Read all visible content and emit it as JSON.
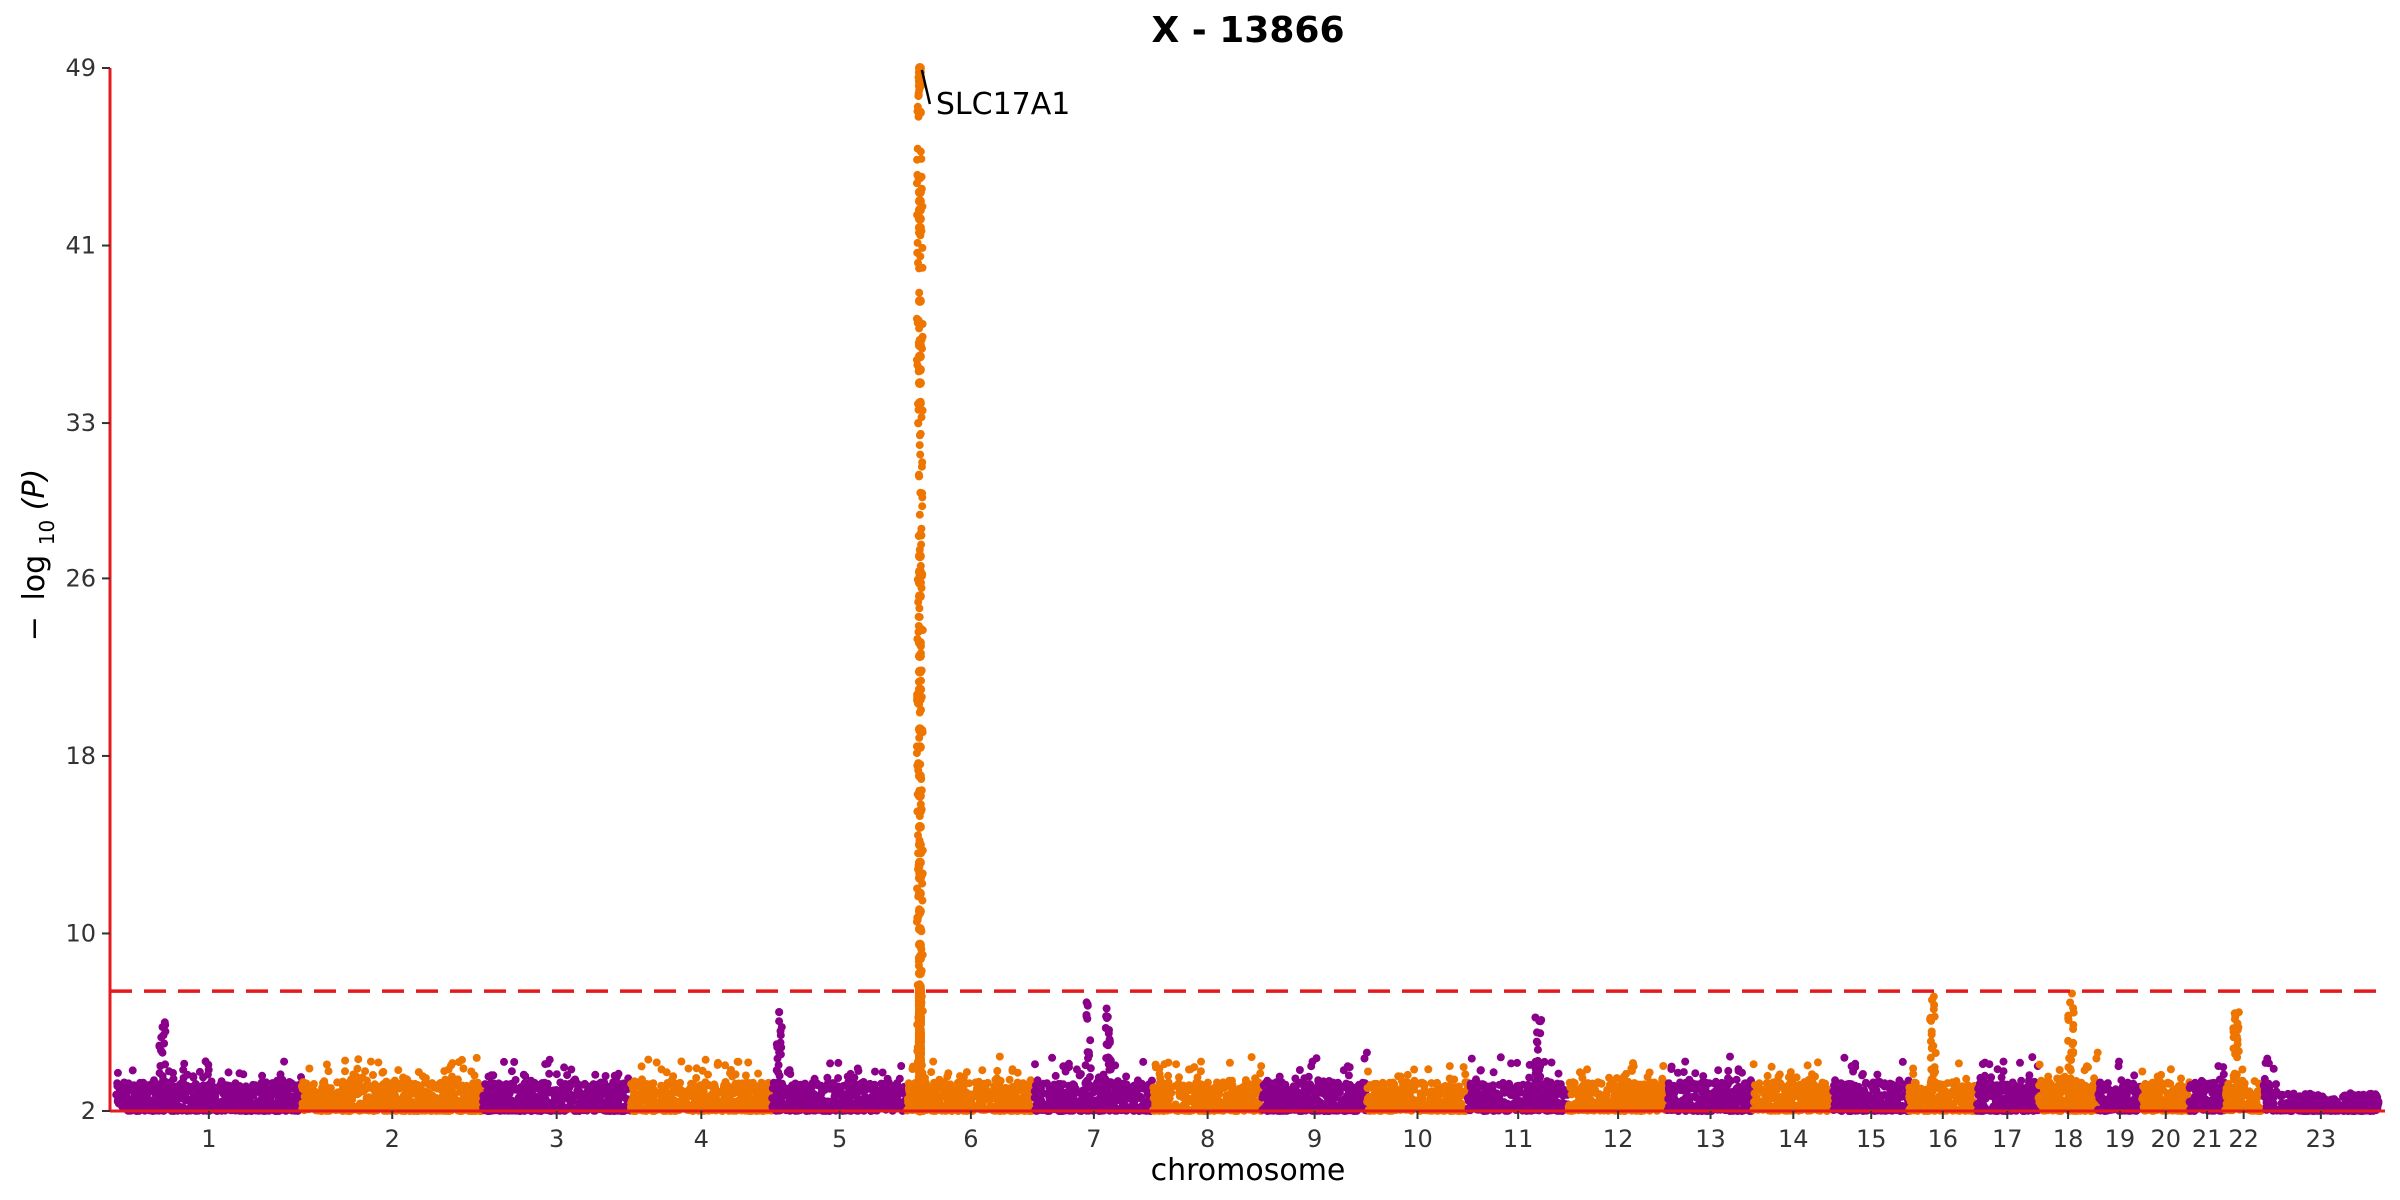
{
  "chart_data": {
    "type": "scatter",
    "title": "X - 13866",
    "xlabel": "chromosome",
    "ylabel_prefix": "−",
    "ylabel_main": "log",
    "ylabel_sub": "10",
    "ylabel_arg": "(P)",
    "y_ticks": [
      2,
      10,
      18,
      26,
      33,
      41,
      49
    ],
    "ylim": [
      2,
      49
    ],
    "significance_line": 7.4,
    "chromosomes": [
      "1",
      "2",
      "3",
      "4",
      "5",
      "6",
      "7",
      "8",
      "9",
      "10",
      "11",
      "12",
      "13",
      "14",
      "15",
      "16",
      "17",
      "18",
      "19",
      "20",
      "21",
      "22",
      "23"
    ],
    "chromosome_lengths_mb": [
      249,
      243,
      198,
      190,
      181,
      171,
      159,
      146,
      141,
      135,
      135,
      133,
      115,
      107,
      102,
      90,
      83,
      80,
      59,
      64,
      47,
      51,
      156
    ],
    "colors": {
      "odd": "#8B008B",
      "even": "#EE7600",
      "threshold": "#E41A1C",
      "axis": "#E41A1C"
    },
    "peaks": [
      {
        "chromosome": "5",
        "position_frac": 0.05,
        "max": 6.5
      },
      {
        "chromosome": "6",
        "position_frac": 0.1,
        "max": 49.0
      },
      {
        "chromosome": "7",
        "position_frac": 0.45,
        "max": 6.9
      },
      {
        "chromosome": "7",
        "position_frac": 0.62,
        "max": 6.9
      },
      {
        "chromosome": "1",
        "position_frac": 0.25,
        "max": 6.2
      },
      {
        "chromosome": "16",
        "position_frac": 0.35,
        "max": 7.2
      },
      {
        "chromosome": "18",
        "position_frac": 0.55,
        "max": 7.3
      },
      {
        "chromosome": "22",
        "position_frac": 0.3,
        "max": 6.7
      },
      {
        "chromosome": "11",
        "position_frac": 0.7,
        "max": 6.5
      }
    ],
    "lead_hits": [
      49.0,
      48.8,
      48.6,
      48.4,
      48.2,
      47.0,
      43.4,
      43.0,
      42.6,
      42.2,
      41.8,
      38.5,
      36.5,
      36.0,
      35.4,
      34.8,
      33.9,
      27.0,
      26.3,
      25.8,
      25.2,
      23.1,
      22.5,
      21.8,
      21.0,
      19.2,
      18.4,
      17.1,
      16.2,
      15.5,
      14.8,
      14.0,
      13.2,
      12.5,
      11.8,
      11.0,
      10.2,
      9.5,
      8.9,
      8.2,
      7.6
    ],
    "annotations": [
      {
        "label": "SLC17A1",
        "chromosome": "6",
        "position_frac": 0.1,
        "y": 49.0
      }
    ]
  }
}
